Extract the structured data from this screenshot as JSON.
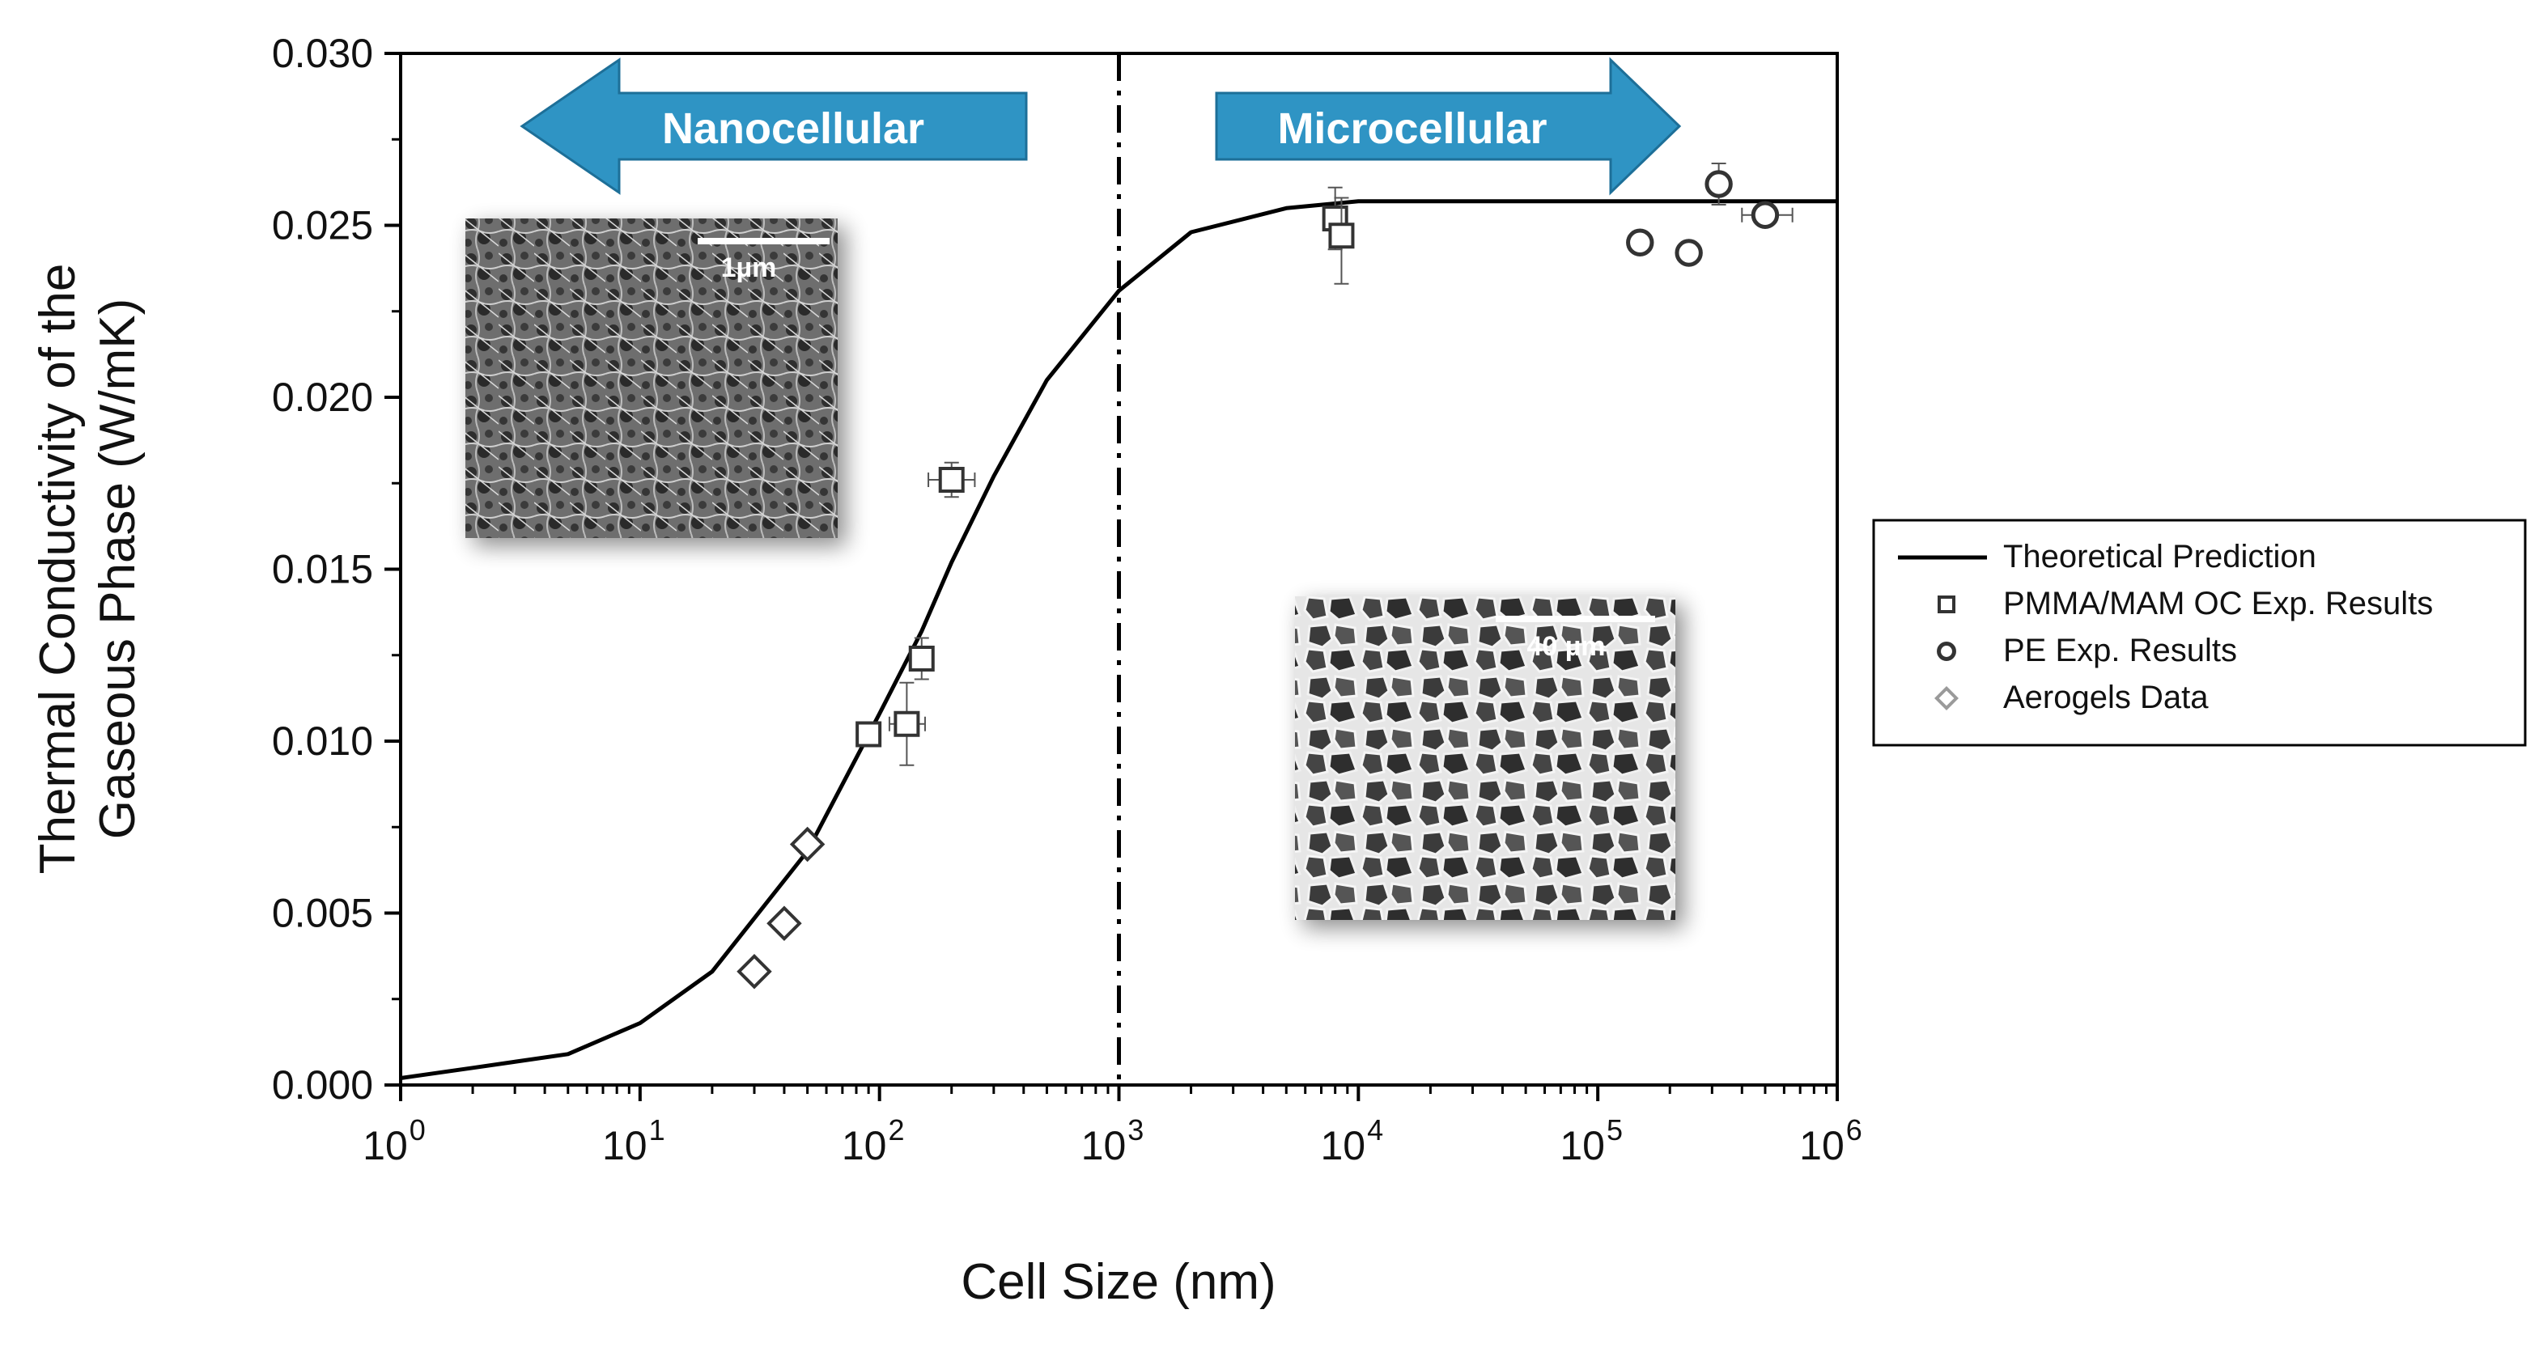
{
  "chart_data": {
    "type": "scatter",
    "xlabel": "Cell Size (nm)",
    "ylabel_line1": "Thermal Conductivity of the",
    "ylabel_line2": "Gaseous Phase (W/mK)",
    "x_scale": "log",
    "xlim": [
      1,
      1000000
    ],
    "ylim": [
      0,
      0.03
    ],
    "grid": false,
    "legend_position": "right",
    "x_ticks": [
      {
        "value": 1,
        "base": "10",
        "exp": "0"
      },
      {
        "value": 10,
        "base": "10",
        "exp": "1"
      },
      {
        "value": 100,
        "base": "10",
        "exp": "2"
      },
      {
        "value": 1000,
        "base": "10",
        "exp": "3"
      },
      {
        "value": 10000,
        "base": "10",
        "exp": "4"
      },
      {
        "value": 100000,
        "base": "10",
        "exp": "5"
      },
      {
        "value": 1000000,
        "base": "10",
        "exp": "6"
      }
    ],
    "y_ticks": [
      {
        "value": 0,
        "label": "0.000"
      },
      {
        "value": 0.005,
        "label": "0.005"
      },
      {
        "value": 0.01,
        "label": "0.010"
      },
      {
        "value": 0.015,
        "label": "0.015"
      },
      {
        "value": 0.02,
        "label": "0.020"
      },
      {
        "value": 0.025,
        "label": "0.025"
      },
      {
        "value": 0.03,
        "label": "0.030"
      }
    ],
    "divider_x": 1000,
    "region_labels": {
      "nano": "Nanocellular",
      "micro": "Microcellular"
    },
    "inset_scale_labels": {
      "nano": "1µm",
      "micro": "40 µm"
    },
    "series": [
      {
        "name": "Theoretical Prediction",
        "kind": "line",
        "x": [
          1,
          2,
          5,
          10,
          20,
          50,
          100,
          150,
          200,
          300,
          500,
          1000,
          2000,
          5000,
          10000,
          100000,
          1000000
        ],
        "y": [
          0.0002,
          0.0005,
          0.0009,
          0.0018,
          0.0033,
          0.0068,
          0.0108,
          0.0132,
          0.0152,
          0.0177,
          0.0205,
          0.0231,
          0.0248,
          0.0255,
          0.0257,
          0.0257,
          0.0257
        ]
      },
      {
        "name": "PMMA/MAM OC Exp. Results",
        "kind": "square",
        "color": "#333333",
        "points": [
          {
            "x": 90,
            "y": 0.0102
          },
          {
            "x": 130,
            "y": 0.0105,
            "xerr": [
              110,
              155
            ],
            "yerr": [
              0.0093,
              0.0117
            ]
          },
          {
            "x": 150,
            "y": 0.0124,
            "yerr": [
              0.0118,
              0.013
            ]
          },
          {
            "x": 200,
            "y": 0.0176,
            "xerr": [
              160,
              250
            ],
            "yerr": [
              0.0171,
              0.0181
            ]
          },
          {
            "x": 8000,
            "y": 0.0252,
            "yerr": [
              0.0243,
              0.0261
            ]
          },
          {
            "x": 8500,
            "y": 0.0247,
            "yerr": [
              0.0233,
              0.0258
            ]
          }
        ]
      },
      {
        "name": "PE Exp. Results",
        "kind": "circle",
        "color": "#333333",
        "points": [
          {
            "x": 150000,
            "y": 0.0245
          },
          {
            "x": 240000,
            "y": 0.0242
          },
          {
            "x": 320000,
            "y": 0.0262,
            "yerr": [
              0.0256,
              0.0268
            ]
          },
          {
            "x": 500000,
            "y": 0.0253,
            "xerr": [
              400000,
              650000
            ]
          }
        ]
      },
      {
        "name": "Aerogels Data",
        "kind": "diamond",
        "color": "#333333",
        "legend_color": "#9a9a9a",
        "points": [
          {
            "x": 30,
            "y": 0.0033
          },
          {
            "x": 40,
            "y": 0.0047
          },
          {
            "x": 50,
            "y": 0.007
          }
        ]
      }
    ]
  },
  "colors": {
    "arrow_fill": "#2f94c4",
    "arrow_stroke": "#1d6f98",
    "axis": "#000000"
  }
}
